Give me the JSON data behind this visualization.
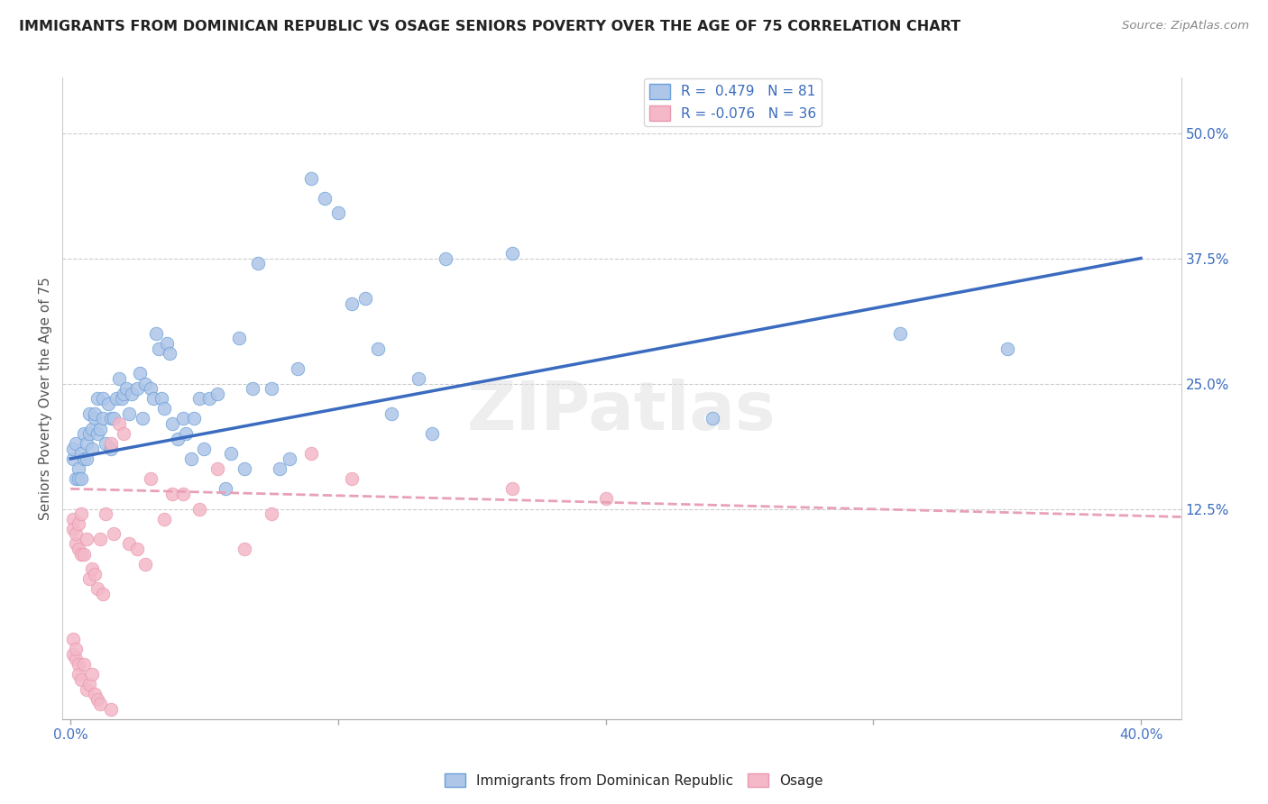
{
  "title": "IMMIGRANTS FROM DOMINICAN REPUBLIC VS OSAGE SENIORS POVERTY OVER THE AGE OF 75 CORRELATION CHART",
  "source": "Source: ZipAtlas.com",
  "ylabel": "Seniors Poverty Over the Age of 75",
  "xlabel_ticks": [
    "0.0%",
    "",
    "",
    "",
    "40.0%"
  ],
  "xlabel_vals": [
    0.0,
    0.1,
    0.2,
    0.3,
    0.4
  ],
  "ylabel_ticks_right": [
    "12.5%",
    "25.0%",
    "37.5%",
    "50.0%"
  ],
  "ylabel_vals_right": [
    0.125,
    0.25,
    0.375,
    0.5
  ],
  "ylabel_vals_grid": [
    0.125,
    0.25,
    0.375,
    0.5
  ],
  "xlim": [
    -0.003,
    0.415
  ],
  "ylim": [
    -0.085,
    0.555
  ],
  "blue_R": 0.479,
  "blue_N": 81,
  "pink_R": -0.076,
  "pink_N": 36,
  "blue_color": "#aec6e8",
  "pink_color": "#f4b8c8",
  "blue_edge_color": "#6a9fd8",
  "pink_edge_color": "#e899b0",
  "blue_line_color": "#3a6bbf",
  "pink_line_color": "#e8a0b8",
  "blue_line_start_y": 0.175,
  "blue_line_end_y": 0.375,
  "pink_line_start_y": 0.145,
  "pink_line_end_y": 0.118,
  "line_x_start": 0.0,
  "line_x_end": 0.4,
  "blue_scatter_x": [
    0.001,
    0.001,
    0.002,
    0.002,
    0.003,
    0.003,
    0.004,
    0.004,
    0.005,
    0.005,
    0.006,
    0.006,
    0.007,
    0.007,
    0.008,
    0.008,
    0.009,
    0.009,
    0.01,
    0.01,
    0.011,
    0.012,
    0.012,
    0.013,
    0.014,
    0.015,
    0.015,
    0.016,
    0.017,
    0.018,
    0.019,
    0.02,
    0.021,
    0.022,
    0.023,
    0.025,
    0.026,
    0.027,
    0.028,
    0.03,
    0.031,
    0.032,
    0.033,
    0.034,
    0.035,
    0.036,
    0.037,
    0.038,
    0.04,
    0.042,
    0.043,
    0.045,
    0.046,
    0.048,
    0.05,
    0.052,
    0.055,
    0.058,
    0.06,
    0.063,
    0.065,
    0.068,
    0.07,
    0.075,
    0.078,
    0.082,
    0.085,
    0.09,
    0.095,
    0.1,
    0.105,
    0.11,
    0.115,
    0.12,
    0.13,
    0.135,
    0.14,
    0.165,
    0.24,
    0.31,
    0.35
  ],
  "blue_scatter_y": [
    0.175,
    0.185,
    0.155,
    0.19,
    0.165,
    0.155,
    0.18,
    0.155,
    0.2,
    0.175,
    0.19,
    0.175,
    0.2,
    0.22,
    0.185,
    0.205,
    0.215,
    0.22,
    0.2,
    0.235,
    0.205,
    0.235,
    0.215,
    0.19,
    0.23,
    0.215,
    0.185,
    0.215,
    0.235,
    0.255,
    0.235,
    0.24,
    0.245,
    0.22,
    0.24,
    0.245,
    0.26,
    0.215,
    0.25,
    0.245,
    0.235,
    0.3,
    0.285,
    0.235,
    0.225,
    0.29,
    0.28,
    0.21,
    0.195,
    0.215,
    0.2,
    0.175,
    0.215,
    0.235,
    0.185,
    0.235,
    0.24,
    0.145,
    0.18,
    0.295,
    0.165,
    0.245,
    0.37,
    0.245,
    0.165,
    0.175,
    0.265,
    0.455,
    0.435,
    0.42,
    0.33,
    0.335,
    0.285,
    0.22,
    0.255,
    0.2,
    0.375,
    0.38,
    0.215,
    0.3,
    0.285
  ],
  "pink_scatter_x": [
    0.001,
    0.001,
    0.002,
    0.002,
    0.003,
    0.003,
    0.004,
    0.004,
    0.005,
    0.006,
    0.007,
    0.008,
    0.009,
    0.01,
    0.011,
    0.012,
    0.013,
    0.015,
    0.016,
    0.018,
    0.02,
    0.022,
    0.025,
    0.028,
    0.03,
    0.035,
    0.038,
    0.042,
    0.048,
    0.055,
    0.065,
    0.075,
    0.09,
    0.105,
    0.165,
    0.2
  ],
  "pink_scatter_y": [
    0.115,
    0.105,
    0.09,
    0.1,
    0.085,
    0.11,
    0.08,
    0.12,
    0.08,
    0.095,
    0.055,
    0.065,
    0.06,
    0.045,
    0.095,
    0.04,
    0.12,
    0.19,
    0.1,
    0.21,
    0.2,
    0.09,
    0.085,
    0.07,
    0.155,
    0.115,
    0.14,
    0.14,
    0.125,
    0.165,
    0.085,
    0.12,
    0.18,
    0.155,
    0.145,
    0.135
  ],
  "pink_neg_x": [
    0.001,
    0.001,
    0.002,
    0.002,
    0.003,
    0.003,
    0.004,
    0.005,
    0.006,
    0.007,
    0.008,
    0.009,
    0.01,
    0.011,
    0.015
  ],
  "pink_neg_y": [
    -0.005,
    -0.02,
    -0.025,
    -0.015,
    -0.03,
    -0.04,
    -0.045,
    -0.03,
    -0.055,
    -0.05,
    -0.04,
    -0.06,
    -0.065,
    -0.07,
    -0.075
  ]
}
